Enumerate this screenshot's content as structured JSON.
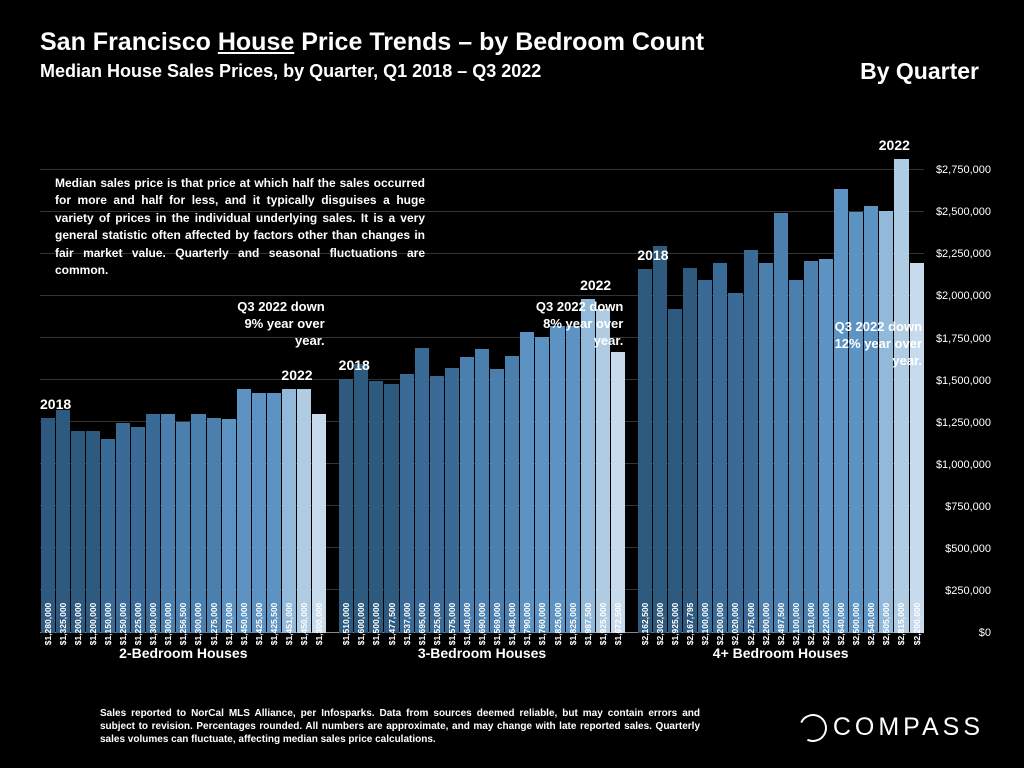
{
  "title_pre": "San Francisco ",
  "title_underline": "House",
  "title_post": " Price Trends – by Bedroom Count",
  "subtitle": "Median House Sales Prices, by Quarter, Q1 2018 – Q3 2022",
  "by_quarter": "By Quarter",
  "description": "Median sales price is that price at which half the sales occurred for more and half for less, and it typically disguises a huge variety of prices in the individual underlying sales. It is a very general statistic often affected by factors other than changes in fair market value. Quarterly and seasonal fluctuations are common.",
  "footer": "Sales reported to NorCal MLS Alliance, per Infosparks. Data from sources deemed reliable, but may contain errors and subject to revision. Percentages rounded. All numbers are approximate, and may change with late reported sales. Quarterly sales volumes can fluctuate, affecting median sales price calculations.",
  "logo_text": "COMPASS",
  "chart": {
    "ymax": 2900000,
    "ymin": 0,
    "ytick_step": 250000,
    "bar_colors": [
      "#2e5a80",
      "#2e5a80",
      "#2e5a80",
      "#2e5a80",
      "#3a6b96",
      "#3a6b96",
      "#3a6b96",
      "#3a6b96",
      "#4a7fae",
      "#4a7fae",
      "#4a7fae",
      "#4a7fae",
      "#5d93c2",
      "#5d93c2",
      "#5d93c2",
      "#5d93c2",
      "#92b9d9",
      "#b0cce3",
      "#c8dbed"
    ],
    "groups": [
      {
        "label": "2-Bedroom Houses",
        "year_start": "2018",
        "year_end": "2022",
        "annotation": "Q3 2022 down\n9% year over\nyear.",
        "values": [
          1280000,
          1325000,
          1200000,
          1200000,
          1150000,
          1250000,
          1225000,
          1300000,
          1300000,
          1256500,
          1300000,
          1275000,
          1270000,
          1450000,
          1425000,
          1425500,
          1451000,
          1450000,
          1300000
        ]
      },
      {
        "label": "3-Bedroom Houses",
        "year_start": "2018",
        "year_end": "2022",
        "annotation": "Q3 2022 down\n8% year over\nyear.",
        "values": [
          1510000,
          1600000,
          1500000,
          1477500,
          1537000,
          1695000,
          1525000,
          1575000,
          1640000,
          1690000,
          1569000,
          1648000,
          1790000,
          1760000,
          1825000,
          1825000,
          1987500,
          1925000,
          1672500
        ]
      },
      {
        "label": "4+ Bedroom Houses",
        "year_start": "2018",
        "year_end": "2022",
        "annotation": "Q3 2022 down\n12% year over\nyear.",
        "values": [
          2162500,
          2302000,
          1925000,
          2167795,
          2100000,
          2200000,
          2020000,
          2275000,
          2200000,
          2497500,
          2100000,
          2210000,
          2220000,
          2640000,
          2500000,
          2540000,
          2505000,
          2815000,
          2200000
        ]
      }
    ]
  }
}
